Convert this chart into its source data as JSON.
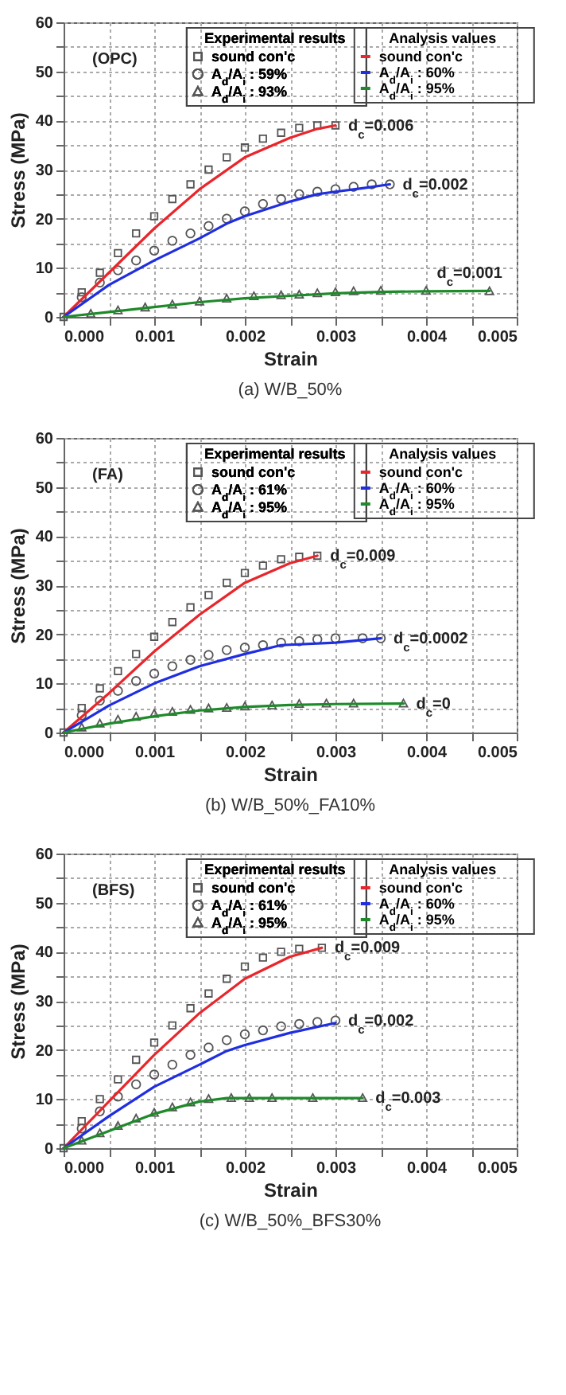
{
  "chart_data": [
    {
      "type": "scatter",
      "title": "(a) W/B_50%",
      "xlabel": "Strain",
      "ylabel": "Stress (MPa)",
      "legend_title": [
        "Experimental results",
        "Analysis values"
      ],
      "legend": "top",
      "grid": true,
      "xlim": [
        0,
        0.005
      ],
      "ylim": [
        0,
        60
      ],
      "xticks": [
        {
          "value": 0,
          "label": "0.000"
        },
        {
          "value": 0.0005,
          "label": null
        },
        {
          "value": 0.001,
          "label": "0.001"
        },
        {
          "value": 0.0015,
          "label": null
        },
        {
          "value": 0.002,
          "label": "0.002"
        },
        {
          "value": 0.0025,
          "label": null
        },
        {
          "value": 0.003,
          "label": "0.003"
        },
        {
          "value": 0.0035,
          "label": null
        },
        {
          "value": 0.004,
          "label": "0.004"
        },
        {
          "value": 0.0045,
          "label": null
        },
        {
          "value": 0.005,
          "label": "0.005"
        }
      ],
      "yticks": [
        0,
        {
          "value": 5,
          "label": null
        },
        10,
        {
          "value": 15,
          "label": null
        },
        20,
        {
          "value": 25,
          "label": null
        },
        30,
        {
          "value": 35,
          "label": null
        },
        40,
        {
          "value": 45,
          "label": null
        },
        50,
        {
          "value": 55,
          "label": null
        },
        60
      ],
      "annotations": [
        "(OPC)",
        {
          "text": "d$_{c}$=0.006",
          "x": 0.003,
          "y": 39
        },
        {
          "text": "d$_{c}$=0.002",
          "x": 0.0036,
          "y": 27
        },
        {
          "text": "d$_{c}$=0.001",
          "x": 0.0047,
          "y": 5.3
        }
      ],
      "series": [
        {
          "name": "sound con'c",
          "type": "scatter",
          "marker": "square",
          "color": "#555555",
          "x": [
            0,
            0.0002,
            0.0004,
            0.0006,
            0.0008,
            0.001,
            0.0012,
            0.0014,
            0.0016,
            0.0018,
            0.002,
            0.0022,
            0.0024,
            0.0026,
            0.0028,
            0.003
          ],
          "values": [
            0,
            5,
            9,
            13,
            17,
            20.5,
            24,
            27,
            30,
            32.5,
            34.5,
            36.3,
            37.5,
            38.5,
            39,
            39
          ]
        },
        {
          "name": "A$_{d}$/A$_{i}$ : 59%",
          "type": "scatter",
          "marker": "circle",
          "color": "#555555",
          "x": [
            0.0002,
            0.0004,
            0.0006,
            0.0008,
            0.001,
            0.0012,
            0.0014,
            0.0016,
            0.0018,
            0.002,
            0.0022,
            0.0024,
            0.0026,
            0.0028,
            0.003,
            0.0032,
            0.0034,
            0.0036
          ],
          "values": [
            4,
            7,
            9.5,
            11.5,
            13.5,
            15.5,
            17,
            18.5,
            20,
            21.5,
            23,
            24,
            25,
            25.5,
            26,
            26.5,
            27,
            27
          ]
        },
        {
          "name": "A$_{d}$/A$_{i}$ : 93%",
          "type": "scatter",
          "marker": "triangle",
          "color": "#555555",
          "x": [
            0.0003,
            0.0006,
            0.0009,
            0.0012,
            0.0015,
            0.0018,
            0.0021,
            0.0024,
            0.0026,
            0.0028,
            0.003,
            0.0032,
            0.0035,
            0.004,
            0.0047
          ],
          "values": [
            0.6,
            1.3,
            1.9,
            2.5,
            3.1,
            3.7,
            4.2,
            4.4,
            4.5,
            4.8,
            5,
            5.2,
            5.3,
            5.3,
            5.2
          ]
        },
        {
          "name": "sound con'c",
          "type": "line",
          "color": "#e8262b",
          "x": [
            0,
            0.0005,
            0.001,
            0.0015,
            0.002,
            0.0025,
            0.0028,
            0.003
          ],
          "values": [
            0,
            9,
            18,
            26,
            32.5,
            36.5,
            38.3,
            39
          ]
        },
        {
          "name": "A$_{d}$/A$_{i}$ : 60%",
          "type": "line",
          "color": "#1f2ee0",
          "x": [
            0,
            0.0005,
            0.001,
            0.0015,
            0.0018,
            0.002,
            0.0025,
            0.0028,
            0.003,
            0.0033,
            0.0036
          ],
          "values": [
            0,
            6.5,
            11.5,
            16,
            19,
            20.5,
            23.5,
            25,
            25.5,
            26.2,
            27
          ]
        },
        {
          "name": "A$_{d}$/A$_{i}$ : 95%",
          "type": "line",
          "color": "#1e8a2a",
          "x": [
            0,
            0.0005,
            0.001,
            0.0015,
            0.002,
            0.0025,
            0.003,
            0.0035,
            0.004,
            0.0047
          ],
          "values": [
            0,
            1,
            2,
            3,
            3.8,
            4.3,
            4.8,
            5.1,
            5.2,
            5.3
          ]
        }
      ]
    },
    {
      "type": "scatter",
      "title": "(b) W/B_50%_FA10%",
      "xlabel": "Strain",
      "ylabel": "Stress (MPa)",
      "legend_title": [
        "Experimental results",
        "Analysis values"
      ],
      "legend": "top",
      "grid": true,
      "xlim": [
        0,
        0.005
      ],
      "ylim": [
        0,
        60
      ],
      "xticks": [
        {
          "value": 0,
          "label": "0.000"
        },
        {
          "value": 0.0005,
          "label": null
        },
        {
          "value": 0.001,
          "label": "0.001"
        },
        {
          "value": 0.0015,
          "label": null
        },
        {
          "value": 0.002,
          "label": "0.002"
        },
        {
          "value": 0.0025,
          "label": null
        },
        {
          "value": 0.003,
          "label": "0.003"
        },
        {
          "value": 0.0035,
          "label": null
        },
        {
          "value": 0.004,
          "label": "0.004"
        },
        {
          "value": 0.0045,
          "label": null
        },
        {
          "value": 0.005,
          "label": "0.005"
        }
      ],
      "yticks": [
        0,
        {
          "value": 5,
          "label": null
        },
        10,
        {
          "value": 15,
          "label": null
        },
        20,
        {
          "value": 25,
          "label": null
        },
        30,
        {
          "value": 35,
          "label": null
        },
        40,
        {
          "value": 45,
          "label": null
        },
        50,
        {
          "value": 55,
          "label": null
        },
        60
      ],
      "annotations": [
        "(FA)",
        {
          "text": "d$_{c}$=0.009",
          "x": 0.0028,
          "y": 36
        },
        {
          "text": "d$_{c}$=0.0002",
          "x": 0.0035,
          "y": 19.2
        },
        {
          "text": "d$_{c}$=0",
          "x": 0.00375,
          "y": 5.9
        }
      ],
      "series": [
        {
          "name": "sound con'c",
          "type": "scatter",
          "marker": "square",
          "color": "#555555",
          "x": [
            0,
            0.0002,
            0.0004,
            0.0006,
            0.0008,
            0.001,
            0.0012,
            0.0014,
            0.0016,
            0.0018,
            0.002,
            0.0022,
            0.0024,
            0.0026,
            0.0028
          ],
          "values": [
            0,
            5,
            9,
            12.5,
            16,
            19.5,
            22.5,
            25.5,
            28,
            30.5,
            32.5,
            34,
            35.3,
            35.8,
            36
          ]
        },
        {
          "name": "A$_{d}$/A$_{i}$ : 61%",
          "type": "scatter",
          "marker": "circle",
          "color": "#555555",
          "x": [
            0.0002,
            0.0004,
            0.0006,
            0.0008,
            0.001,
            0.0012,
            0.0014,
            0.0016,
            0.0018,
            0.002,
            0.0022,
            0.0024,
            0.0026,
            0.0028,
            0.003,
            0.0033,
            0.0035
          ],
          "values": [
            3.5,
            6.5,
            8.5,
            10.5,
            12,
            13.5,
            14.8,
            15.8,
            16.8,
            17.3,
            17.8,
            18.3,
            18.6,
            19,
            19.2,
            19.2,
            19.2
          ]
        },
        {
          "name": "A$_{d}$/A$_{i}$ : 95%",
          "type": "scatter",
          "marker": "triangle",
          "color": "#555555",
          "x": [
            0.0002,
            0.0004,
            0.0006,
            0.0008,
            0.001,
            0.0012,
            0.0014,
            0.0016,
            0.0018,
            0.002,
            0.0023,
            0.0026,
            0.0029,
            0.0032,
            0.00375
          ],
          "values": [
            1,
            1.8,
            2.6,
            3.2,
            3.8,
            4.2,
            4.6,
            4.9,
            5,
            5.3,
            5.5,
            5.8,
            5.9,
            5.9,
            5.9
          ]
        },
        {
          "name": "sound con'c",
          "type": "line",
          "color": "#e8262b",
          "x": [
            0,
            0.0005,
            0.001,
            0.0015,
            0.002,
            0.0025,
            0.0028
          ],
          "values": [
            0,
            8,
            16.5,
            24,
            30.5,
            34.5,
            36
          ]
        },
        {
          "name": "A$_{d}$/A$_{i}$ : 60%",
          "type": "line",
          "color": "#1f2ee0",
          "x": [
            0,
            0.0005,
            0.001,
            0.0015,
            0.002,
            0.0024,
            0.003,
            0.0035
          ],
          "values": [
            0,
            5.5,
            10,
            13.5,
            16,
            17.8,
            18.3,
            19.2
          ]
        },
        {
          "name": "A$_{d}$/A$_{i}$ : 95%",
          "type": "line",
          "color": "#1e8a2a",
          "x": [
            0,
            0.0005,
            0.001,
            0.0015,
            0.002,
            0.0025,
            0.003,
            0.00375
          ],
          "values": [
            0,
            1.8,
            3.3,
            4.5,
            5.2,
            5.6,
            5.8,
            5.9
          ]
        }
      ]
    },
    {
      "type": "scatter",
      "title": "(c) W/B_50%_BFS30%",
      "xlabel": "Strain",
      "ylabel": "Stress (MPa)",
      "legend_title": [
        "Experimental results",
        "Analysis values"
      ],
      "legend": "top",
      "grid": true,
      "xlim": [
        0,
        0.005
      ],
      "ylim": [
        0,
        60
      ],
      "xticks": [
        {
          "value": 0,
          "label": "0.000"
        },
        {
          "value": 0.0005,
          "label": null
        },
        {
          "value": 0.001,
          "label": "0.001"
        },
        {
          "value": 0.0015,
          "label": null
        },
        {
          "value": 0.002,
          "label": "0.002"
        },
        {
          "value": 0.0025,
          "label": null
        },
        {
          "value": 0.003,
          "label": "0.003"
        },
        {
          "value": 0.0035,
          "label": null
        },
        {
          "value": 0.004,
          "label": "0.004"
        },
        {
          "value": 0.0045,
          "label": null
        },
        {
          "value": 0.005,
          "label": "0.005"
        }
      ],
      "yticks": [
        0,
        {
          "value": 5,
          "label": null
        },
        10,
        {
          "value": 15,
          "label": null
        },
        20,
        {
          "value": 25,
          "label": null
        },
        30,
        {
          "value": 35,
          "label": null
        },
        40,
        {
          "value": 45,
          "label": null
        },
        50,
        {
          "value": 55,
          "label": null
        },
        60
      ],
      "annotations": [
        "(BFS)",
        {
          "text": "d$_{c}$=0.009",
          "x": 0.00285,
          "y": 40.8
        },
        {
          "text": "d$_{c}$=0.002",
          "x": 0.003,
          "y": 26
        },
        {
          "text": "d$_{c}$=0.003",
          "x": 0.0033,
          "y": 10.2
        }
      ],
      "series": [
        {
          "name": "sound con'c",
          "type": "scatter",
          "marker": "square",
          "color": "#555555",
          "x": [
            0,
            0.0002,
            0.0004,
            0.0006,
            0.0008,
            0.001,
            0.0012,
            0.0014,
            0.0016,
            0.0018,
            0.002,
            0.0022,
            0.0024,
            0.0026,
            0.00285
          ],
          "values": [
            0,
            5.5,
            10,
            14,
            18,
            21.5,
            25,
            28.5,
            31.5,
            34.5,
            37,
            38.8,
            40,
            40.6,
            40.8
          ]
        },
        {
          "name": "A$_{d}$/A$_{i}$ : 61%",
          "type": "scatter",
          "marker": "circle",
          "color": "#555555",
          "x": [
            0.0002,
            0.0004,
            0.0006,
            0.0008,
            0.001,
            0.0012,
            0.0014,
            0.0016,
            0.0018,
            0.002,
            0.0022,
            0.0024,
            0.0026,
            0.0028,
            0.003
          ],
          "values": [
            4,
            7.5,
            10.5,
            13,
            15,
            17,
            19,
            20.5,
            22,
            23.2,
            24,
            24.8,
            25.3,
            25.7,
            26
          ]
        },
        {
          "name": "A$_{d}$/A$_{i}$ : 95%",
          "type": "scatter",
          "marker": "triangle",
          "color": "#555555",
          "x": [
            0.0002,
            0.0004,
            0.0006,
            0.0008,
            0.001,
            0.0012,
            0.0014,
            0.0016,
            0.00185,
            0.00205,
            0.0023,
            0.00275,
            0.0033
          ],
          "values": [
            1.5,
            3,
            4.5,
            6,
            7.2,
            8.3,
            9.3,
            10,
            10.2,
            10.2,
            10.2,
            10.2,
            10.2
          ]
        },
        {
          "name": "sound con'c",
          "type": "line",
          "color": "#e8262b",
          "x": [
            0,
            0.0005,
            0.001,
            0.0015,
            0.002,
            0.0025,
            0.00285
          ],
          "values": [
            0,
            9.5,
            19,
            27.5,
            34.5,
            39,
            40.8
          ]
        },
        {
          "name": "A$_{d}$/A$_{i}$ : 60%",
          "type": "line",
          "color": "#1f2ee0",
          "x": [
            0,
            0.0005,
            0.001,
            0.0015,
            0.0018,
            0.002,
            0.0025,
            0.003
          ],
          "values": [
            0,
            6.5,
            12.5,
            17,
            19.8,
            21,
            23.5,
            25.5
          ]
        },
        {
          "name": "A$_{d}$/A$_{i}$ : 95%",
          "type": "line",
          "color": "#1e8a2a",
          "x": [
            0,
            0.0005,
            0.001,
            0.0015,
            0.0018,
            0.0025,
            0.0033
          ],
          "values": [
            0,
            3.5,
            7,
            9.5,
            10.2,
            10.2,
            10.2
          ]
        }
      ]
    }
  ]
}
